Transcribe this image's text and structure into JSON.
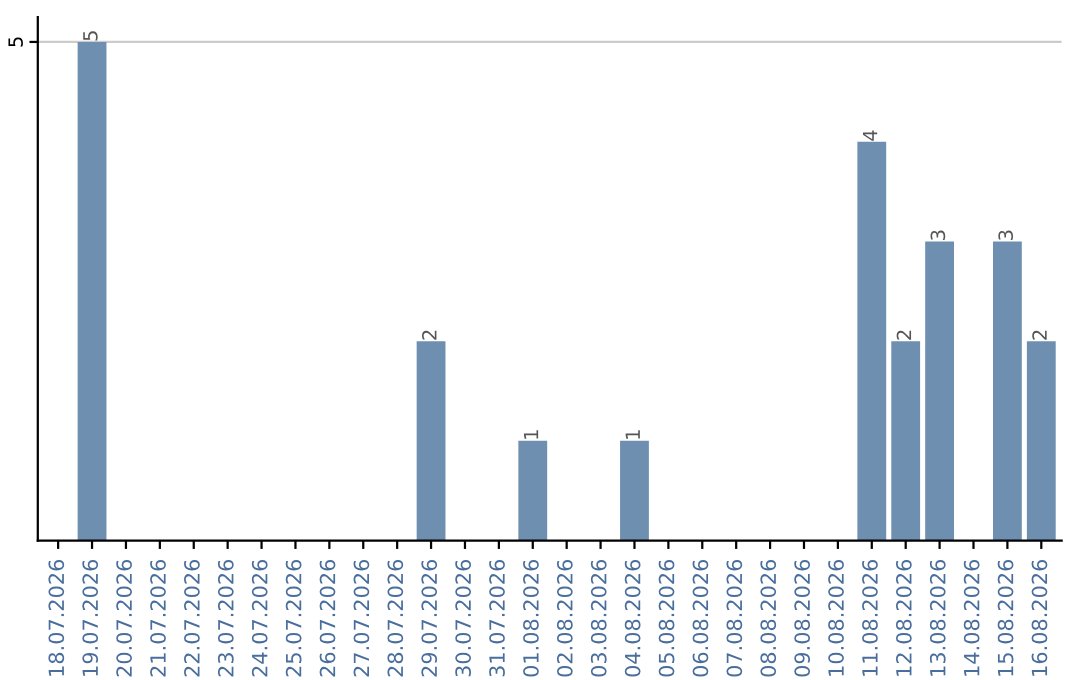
{
  "chart_data": {
    "type": "bar",
    "categories": [
      "18.07.2026",
      "19.07.2026",
      "20.07.2026",
      "21.07.2026",
      "22.07.2026",
      "23.07.2026",
      "24.07.2026",
      "25.07.2026",
      "26.07.2026",
      "27.07.2026",
      "28.07.2026",
      "29.07.2026",
      "30.07.2026",
      "31.07.2026",
      "01.08.2026",
      "02.08.2026",
      "03.08.2026",
      "04.08.2026",
      "05.08.2026",
      "06.08.2026",
      "07.08.2026",
      "08.08.2026",
      "09.08.2026",
      "10.08.2026",
      "11.08.2026",
      "12.08.2026",
      "13.08.2026",
      "14.08.2026",
      "15.08.2026",
      "16.08.2026"
    ],
    "values": [
      0,
      5,
      0,
      0,
      0,
      0,
      0,
      0,
      0,
      0,
      0,
      2,
      0,
      0,
      1,
      0,
      0,
      1,
      0,
      0,
      0,
      0,
      0,
      0,
      4,
      2,
      3,
      0,
      3,
      2
    ],
    "value_labels": [
      null,
      "5",
      null,
      null,
      null,
      null,
      null,
      null,
      null,
      null,
      null,
      "2",
      null,
      null,
      "1",
      null,
      null,
      "1",
      null,
      null,
      null,
      null,
      null,
      null,
      "4",
      "2",
      "3",
      null,
      "3",
      "2"
    ],
    "color": "#6e8fb0",
    "ylim": [
      0,
      5.25
    ],
    "yticks": [
      5
    ],
    "grid": "y"
  }
}
